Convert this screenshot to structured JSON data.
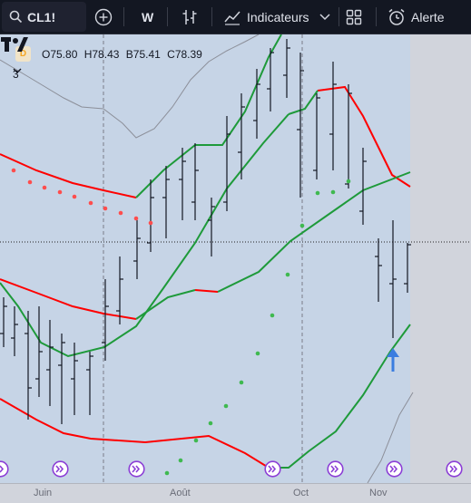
{
  "toolbar": {
    "symbol": "CL1!",
    "interval": "W",
    "indicators_label": "Indicateurs",
    "alert_label": "Alerte"
  },
  "legend": {
    "badge": "D",
    "open": "O75.80",
    "high": "H78.43",
    "low": "B75.41",
    "close": "C78.39",
    "indicator_count": "3"
  },
  "xaxis": {
    "labels": [
      "Juin",
      "Août",
      "Oct",
      "Nov"
    ]
  },
  "colors": {
    "highlight": "#c6d4e6",
    "background": "#d1d4dc",
    "upper_band": "#ff0000",
    "lower_band": "#1e9a3a",
    "psar_down": "#ff4d4d",
    "psar_up": "#3fb950",
    "arrow": "#3a7de0",
    "event_icon": "#8c3fd6"
  },
  "chart_data": {
    "type": "ohlc",
    "notes_visible": "no numeric price axis visible",
    "last_bar": {
      "open": 75.8,
      "high": 78.43,
      "low": 75.41,
      "close": 78.39
    }
  }
}
